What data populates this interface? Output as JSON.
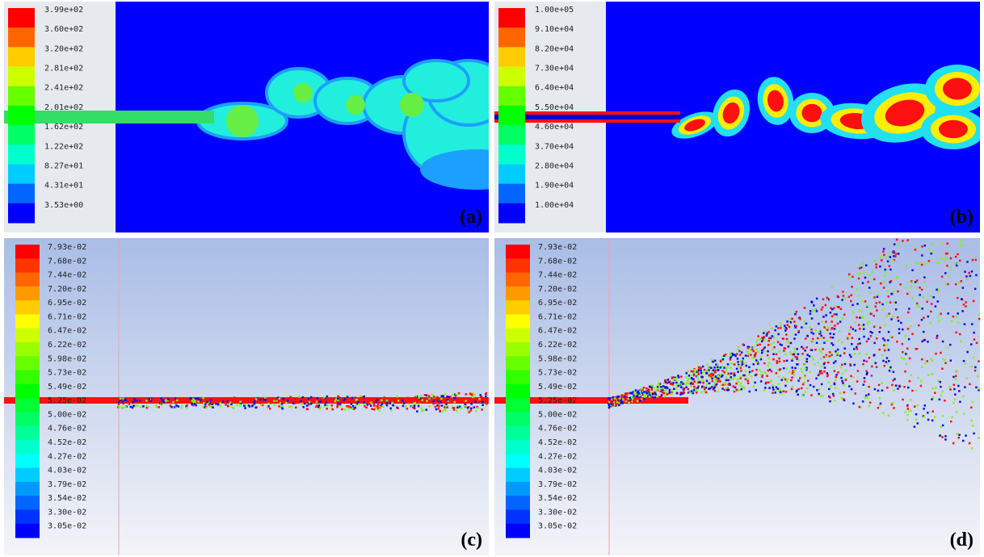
{
  "panels": [
    {
      "tag": "(a)",
      "colorbar": [
        "3.99e+02",
        "3.60e+02",
        "3.20e+02",
        "2.81e+02",
        "2.41e+02",
        "2.01e+02",
        "1.62e+02",
        "1.22e+02",
        "8.27e+01",
        "4.31e+01",
        "3.53e+00"
      ]
    },
    {
      "tag": "(b)",
      "colorbar": [
        "1.00e+05",
        "9.10e+04",
        "8.20e+04",
        "7.30e+04",
        "6.40e+04",
        "5.50e+04",
        "4.60e+04",
        "3.70e+04",
        "2.80e+04",
        "1.90e+04",
        "1.00e+04"
      ]
    },
    {
      "tag": "(c)",
      "colorbar": [
        "7.93e-02",
        "7.68e-02",
        "7.44e-02",
        "7.20e-02",
        "6.95e-02",
        "6.71e-02",
        "6.47e-02",
        "6.22e-02",
        "5.98e-02",
        "5.73e-02",
        "5.49e-02",
        "5.25e-02",
        "5.00e-02",
        "4.76e-02",
        "4.52e-02",
        "4.27e-02",
        "4.03e-02",
        "3.79e-02",
        "3.54e-02",
        "3.30e-02",
        "3.05e-02"
      ]
    },
    {
      "tag": "(d)",
      "colorbar": [
        "7.93e-02",
        "7.68e-02",
        "7.44e-02",
        "7.20e-02",
        "6.95e-02",
        "6.71e-02",
        "6.47e-02",
        "6.22e-02",
        "5.98e-02",
        "5.73e-02",
        "5.49e-02",
        "5.25e-02",
        "5.00e-02",
        "4.76e-02",
        "4.52e-02",
        "4.27e-02",
        "4.03e-02",
        "3.79e-02",
        "3.54e-02",
        "3.30e-02",
        "3.05e-02"
      ]
    }
  ]
}
